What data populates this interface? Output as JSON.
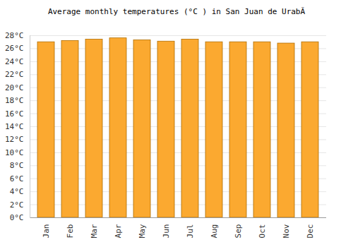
{
  "chart_data": {
    "type": "bar",
    "title": "Average monthly temperatures (°C ) in San Juan de UrabÃ",
    "categories": [
      "Jan",
      "Feb",
      "Mar",
      "Apr",
      "May",
      "Jun",
      "Jul",
      "Aug",
      "Sep",
      "Oct",
      "Nov",
      "Dec"
    ],
    "values": [
      27.0,
      27.2,
      27.4,
      27.6,
      27.3,
      27.1,
      27.4,
      27.0,
      27.0,
      27.0,
      26.8,
      27.0
    ],
    "color": "#fba930",
    "ylim": [
      0,
      28
    ],
    "yticks": [
      {
        "value": 0,
        "label": "0°C"
      },
      {
        "value": 2,
        "label": "2°C"
      },
      {
        "value": 4,
        "label": "4°C"
      },
      {
        "value": 6,
        "label": "6°C"
      },
      {
        "value": 8,
        "label": "8°C"
      },
      {
        "value": 10,
        "label": "10°C"
      },
      {
        "value": 12,
        "label": "12°C"
      },
      {
        "value": 14,
        "label": "14°C"
      },
      {
        "value": 16,
        "label": "16°C"
      },
      {
        "value": 18,
        "label": "18°C"
      },
      {
        "value": 20,
        "label": "20°C"
      },
      {
        "value": 22,
        "label": "22°C"
      },
      {
        "value": 24,
        "label": "24°C"
      },
      {
        "value": 26,
        "label": "26°C"
      },
      {
        "value": 28,
        "label": "28°C"
      }
    ],
    "grid": true
  }
}
